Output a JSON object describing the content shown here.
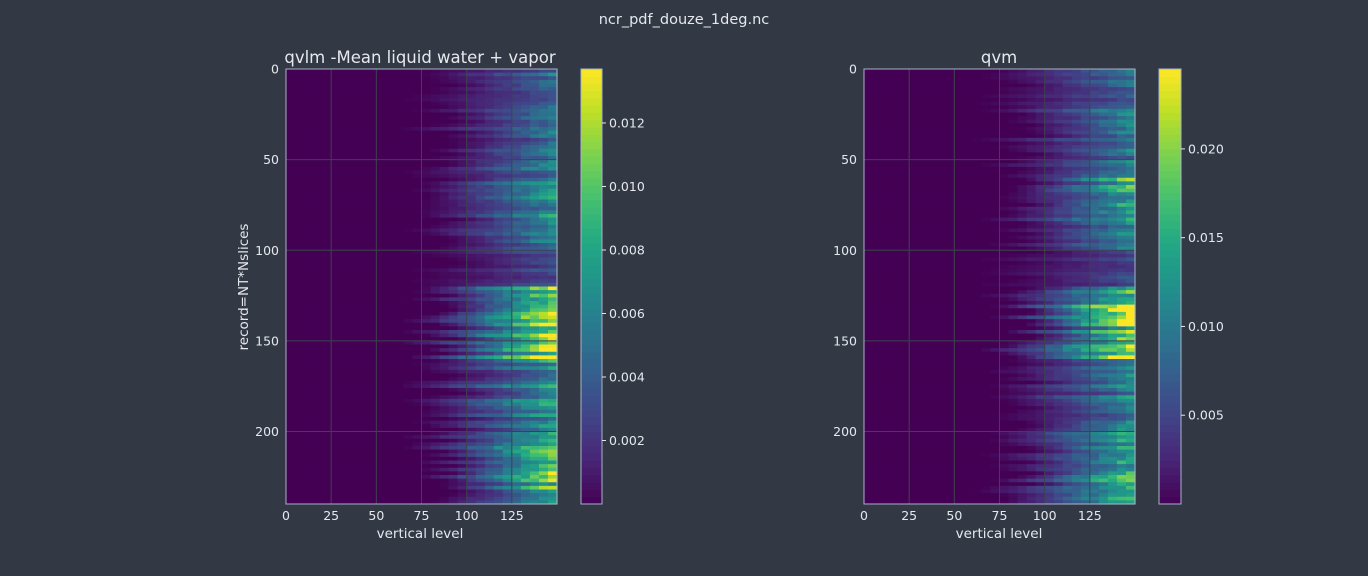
{
  "figure_title": "ncr_pdf_douze_1deg.nc",
  "chart_data": [
    {
      "type": "heatmap",
      "title": "qvlm -Mean liquid water + vapor",
      "xlabel": "vertical level",
      "ylabel": "record=NT*Nslices",
      "x_range": [
        0,
        150
      ],
      "y_range": [
        240,
        0
      ],
      "x_ticks": [
        "0",
        "25",
        "50",
        "75",
        "100",
        "125"
      ],
      "y_ticks": [
        "0",
        "50",
        "100",
        "150",
        "200"
      ],
      "grid": true,
      "colormap": "viridis",
      "colorbar": {
        "min": 0.0,
        "max": 0.0137,
        "ticks": [
          "0.002",
          "0.004",
          "0.006",
          "0.008",
          "0.010",
          "0.012"
        ]
      },
      "record_bands": [
        {
          "from": 0,
          "to": 20,
          "max_value": 0.0052
        },
        {
          "from": 20,
          "to": 60,
          "max_value": 0.0058
        },
        {
          "from": 60,
          "to": 80,
          "max_value": 0.0075
        },
        {
          "from": 80,
          "to": 100,
          "max_value": 0.0062
        },
        {
          "from": 100,
          "to": 120,
          "max_value": 0.0032
        },
        {
          "from": 120,
          "to": 160,
          "max_value": 0.0128
        },
        {
          "from": 160,
          "to": 200,
          "max_value": 0.0072
        },
        {
          "from": 200,
          "to": 240,
          "max_value": 0.0098
        }
      ]
    },
    {
      "type": "heatmap",
      "title": "qvm",
      "xlabel": "vertical level",
      "ylabel": "",
      "x_range": [
        0,
        150
      ],
      "y_range": [
        240,
        0
      ],
      "x_ticks": [
        "0",
        "25",
        "50",
        "75",
        "100",
        "125"
      ],
      "y_ticks": [
        "0",
        "50",
        "100",
        "150",
        "200"
      ],
      "grid": true,
      "colormap": "viridis",
      "colorbar": {
        "min": 0.0,
        "max": 0.0245,
        "ticks": [
          "0.005",
          "0.010",
          "0.015",
          "0.020"
        ]
      },
      "record_bands": [
        {
          "from": 0,
          "to": 20,
          "max_value": 0.0085
        },
        {
          "from": 20,
          "to": 60,
          "max_value": 0.0105
        },
        {
          "from": 60,
          "to": 80,
          "max_value": 0.0165
        },
        {
          "from": 80,
          "to": 100,
          "max_value": 0.0115
        },
        {
          "from": 100,
          "to": 120,
          "max_value": 0.0055
        },
        {
          "from": 120,
          "to": 160,
          "max_value": 0.0215
        },
        {
          "from": 160,
          "to": 200,
          "max_value": 0.0105
        },
        {
          "from": 200,
          "to": 240,
          "max_value": 0.0155
        }
      ]
    }
  ],
  "colors": {
    "background": "#323844",
    "text": "#e6e8ee",
    "grid": "#3c4350",
    "axes_edge": "#a8b4c8"
  }
}
